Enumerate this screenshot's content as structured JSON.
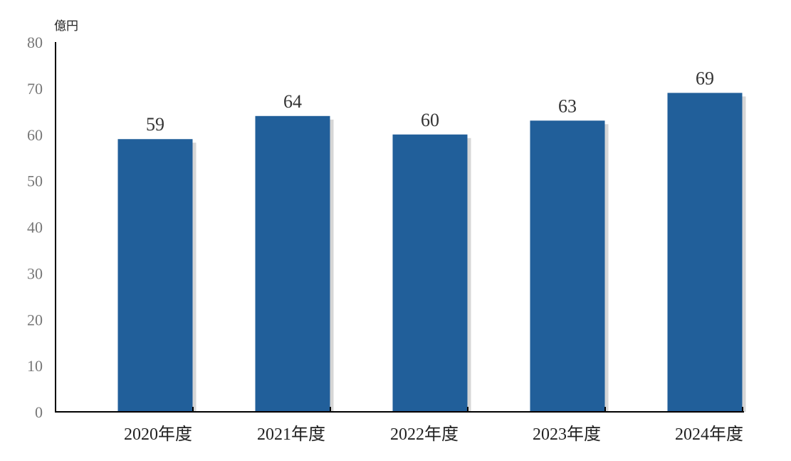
{
  "chart_data": {
    "type": "bar",
    "unit": "億円",
    "categories": [
      "2020年度",
      "2021年度",
      "2022年度",
      "2023年度",
      "2024年度"
    ],
    "values": [
      59,
      64,
      60,
      63,
      69
    ],
    "ylim": [
      0,
      80
    ],
    "yticks": [
      "0",
      "10",
      "20",
      "30",
      "40",
      "50",
      "60",
      "70",
      "80"
    ],
    "data_labels": [
      "59",
      "64",
      "60",
      "63",
      "69"
    ],
    "grid": false,
    "legend": "none",
    "bar_color": "#215f9a",
    "shadow_color": "#c8c8c8"
  }
}
